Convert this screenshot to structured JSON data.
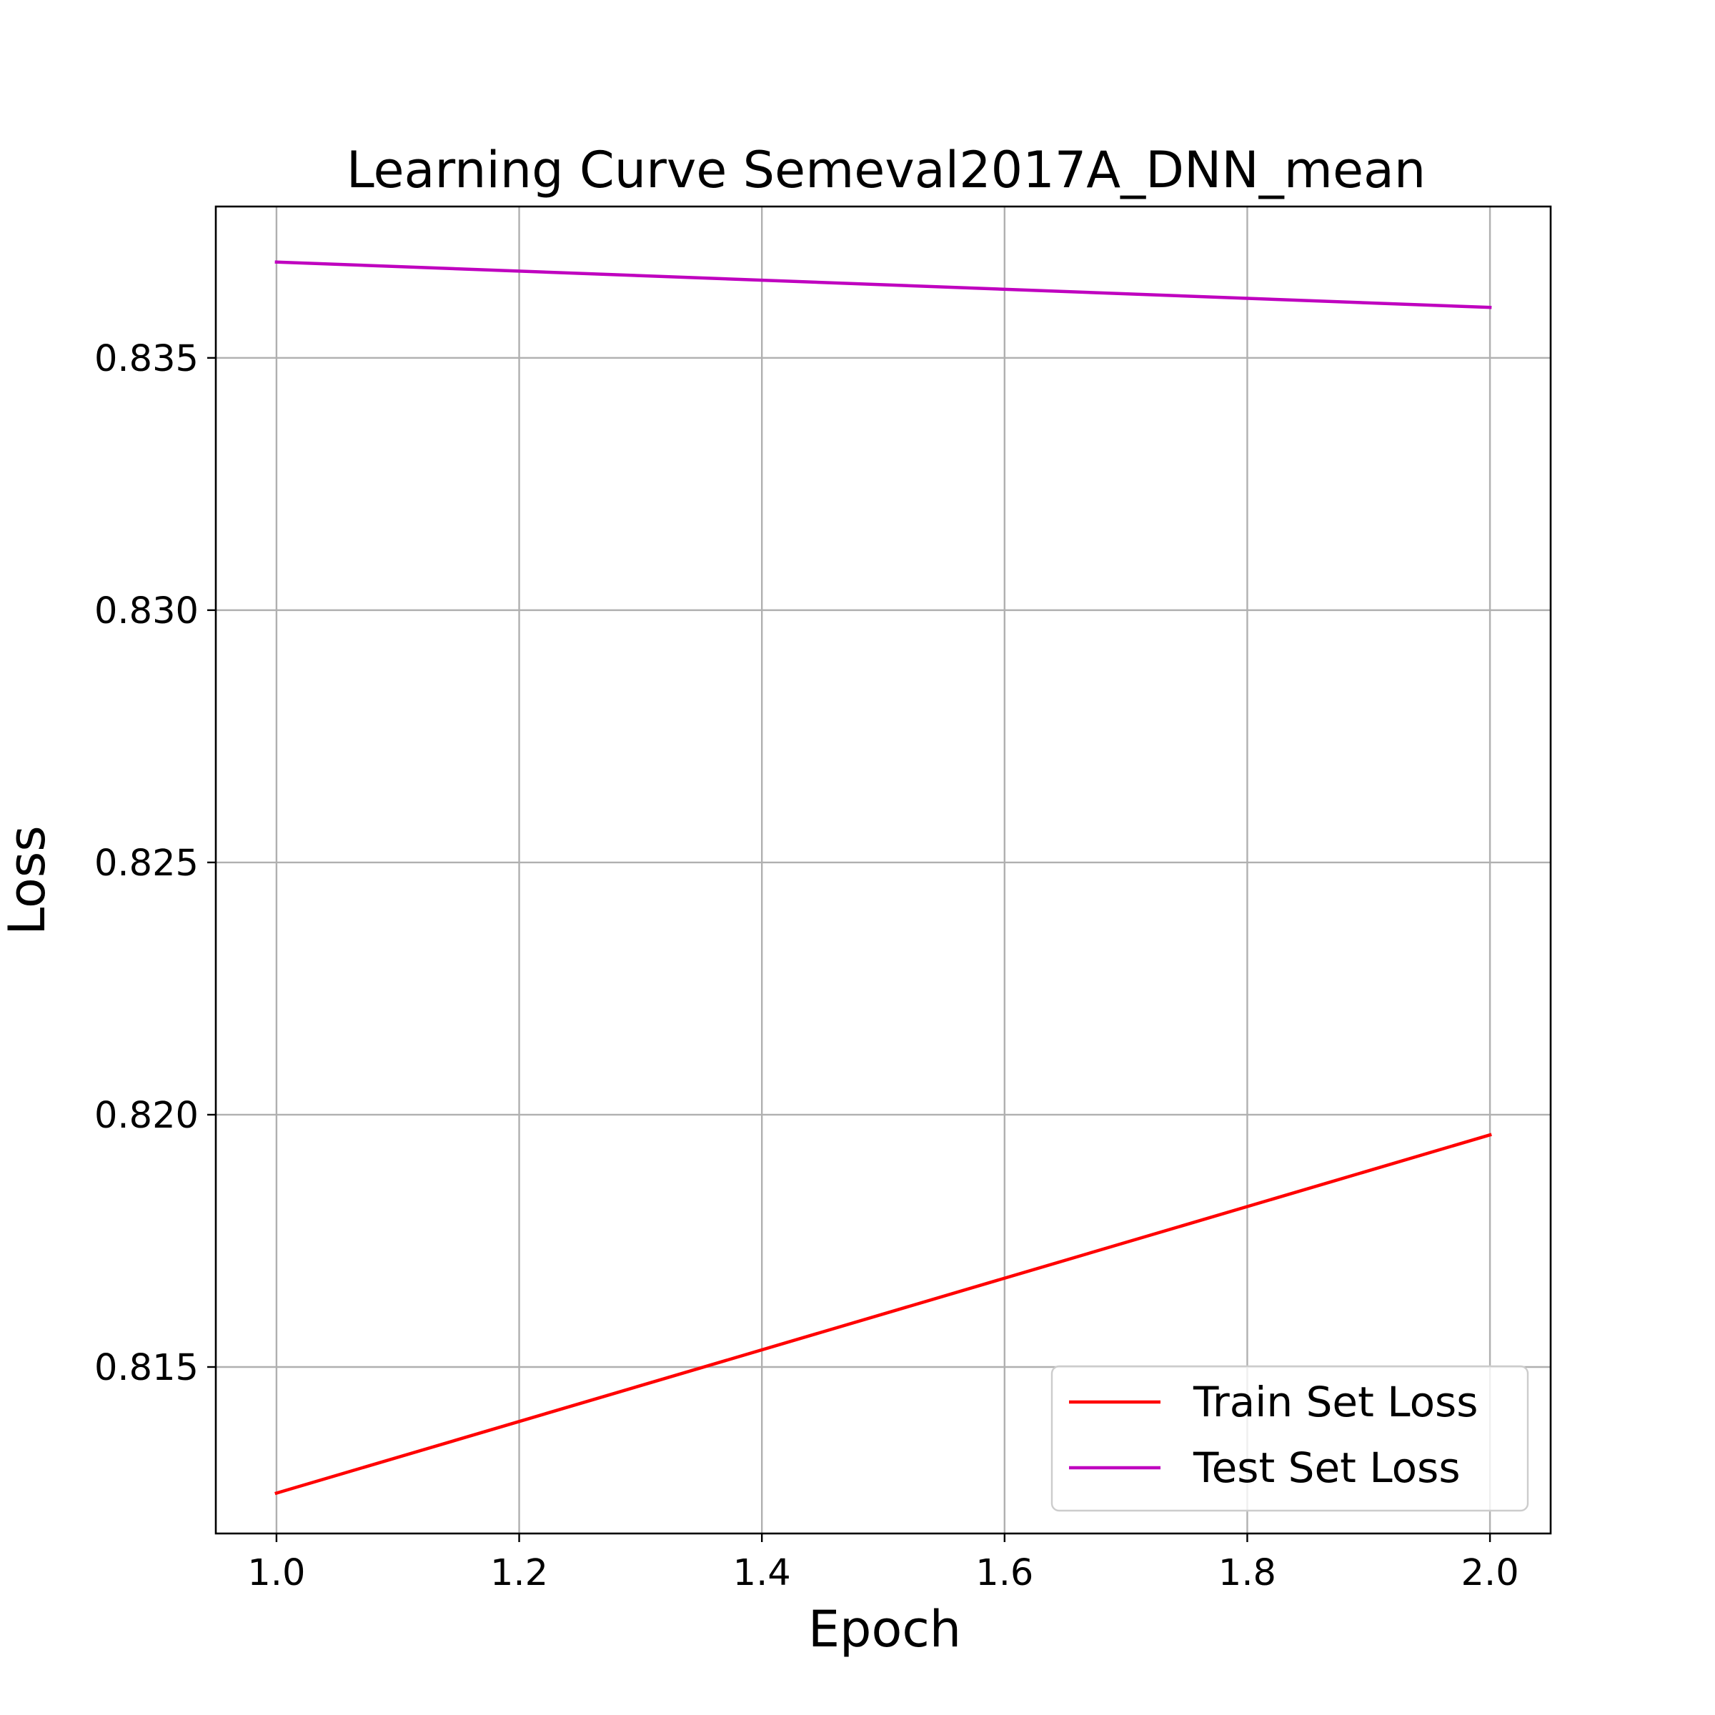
{
  "chart_data": {
    "type": "line",
    "title": "Learning Curve Semeval2017A_DNN_mean",
    "xlabel": "Epoch",
    "ylabel": "Loss",
    "xlim": [
      0.95,
      2.05
    ],
    "ylim": [
      0.8117,
      0.838
    ],
    "xticks": [
      1.0,
      1.2,
      1.4,
      1.6,
      1.8,
      2.0
    ],
    "xtick_labels": [
      "1.0",
      "1.2",
      "1.4",
      "1.6",
      "1.8",
      "2.0"
    ],
    "yticks": [
      0.815,
      0.82,
      0.825,
      0.83,
      0.835
    ],
    "ytick_labels": [
      "0.815",
      "0.820",
      "0.825",
      "0.830",
      "0.835"
    ],
    "grid": true,
    "legend_position": "lower-right",
    "series": [
      {
        "name": "Train Set Loss",
        "color": "#ff0000",
        "x": [
          1.0,
          2.0
        ],
        "y": [
          0.8125,
          0.8196
        ]
      },
      {
        "name": "Test Set Loss",
        "color": "#bf00bf",
        "x": [
          1.0,
          2.0
        ],
        "y": [
          0.8369,
          0.836
        ]
      }
    ]
  }
}
